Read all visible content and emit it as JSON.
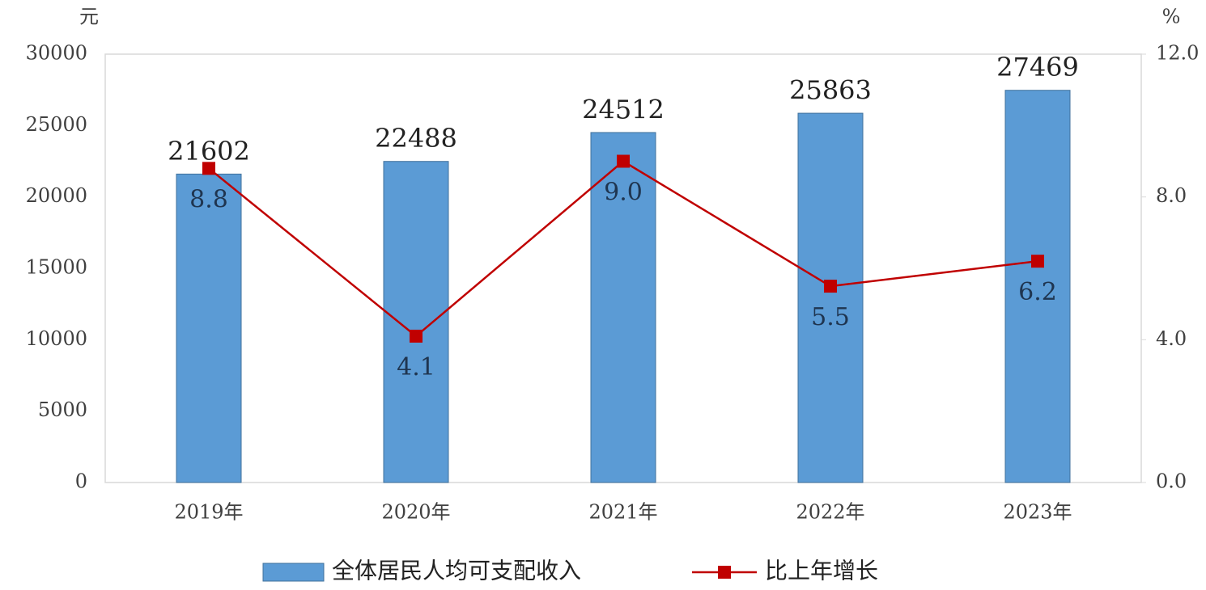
{
  "chart_data": {
    "type": "bar",
    "y_unit": "元",
    "y2_unit": "%",
    "categories": [
      "2019年",
      "2020年",
      "2021年",
      "2022年",
      "2023年"
    ],
    "series": [
      {
        "name": "全体居民人均可支配收入",
        "type": "bar",
        "color": "#5b9bd5",
        "values": [
          21602,
          22488,
          24512,
          25863,
          27469
        ]
      },
      {
        "name": "比上年增长",
        "type": "line",
        "axis": "y2",
        "color": "#c00000",
        "values": [
          8.8,
          4.1,
          9.0,
          5.5,
          6.2
        ],
        "value_labels": [
          "8.8",
          "4.1",
          "9.0",
          "5.5",
          "6.2"
        ]
      }
    ],
    "ylim": [
      0,
      30000
    ],
    "yticks": [
      0,
      5000,
      10000,
      15000,
      20000,
      25000,
      30000
    ],
    "y2lim": [
      0,
      12
    ],
    "y2ticks": [
      {
        "value": 0,
        "label": "0.0"
      },
      {
        "value": 4,
        "label": "4.0"
      },
      {
        "value": 8,
        "label": "8.0"
      },
      {
        "value": 12,
        "label": "12.0"
      }
    ],
    "grid": false
  }
}
